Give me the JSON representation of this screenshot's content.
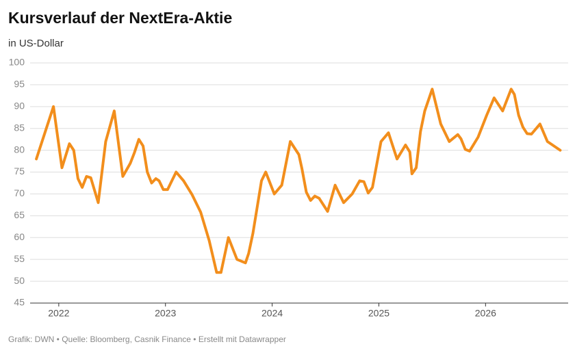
{
  "chart_data": {
    "type": "line",
    "title": "Kursverlauf der NextEra-Aktie",
    "subtitle": "in US-Dollar",
    "footer": "Grafik: DWN • Quelle: Bloomberg, Casnik Finance • Erstellt mit Datawrapper",
    "x": [
      2021.79,
      2021.95,
      2022.03,
      2022.1,
      2022.14,
      2022.18,
      2022.22,
      2022.26,
      2022.3,
      2022.37,
      2022.44,
      2022.52,
      2022.6,
      2022.67,
      2022.71,
      2022.75,
      2022.79,
      2022.83,
      2022.87,
      2022.91,
      2022.94,
      2022.98,
      2023.02,
      2023.1,
      2023.17,
      2023.25,
      2023.33,
      2023.41,
      2023.48,
      2023.52,
      2023.59,
      2023.67,
      2023.75,
      2023.78,
      2023.82,
      2023.9,
      2023.94,
      2024.02,
      2024.09,
      2024.17,
      2024.25,
      2024.28,
      2024.32,
      2024.36,
      2024.4,
      2024.44,
      2024.52,
      2024.59,
      2024.67,
      2024.75,
      2024.82,
      2024.86,
      2024.9,
      2024.94,
      2025.02,
      2025.09,
      2025.17,
      2025.25,
      2025.29,
      2025.31,
      2025.35,
      2025.39,
      2025.43,
      2025.5,
      2025.58,
      2025.66,
      2025.74,
      2025.77,
      2025.81,
      2025.85,
      2025.93,
      2026.01,
      2026.08,
      2026.16,
      2026.24,
      2026.27,
      2026.31,
      2026.35,
      2026.39,
      2026.43,
      2026.51,
      2026.58,
      2026.7
    ],
    "series": [
      {
        "name": "NextEra",
        "color": "#f28e1c",
        "values": [
          78,
          90,
          76,
          81.5,
          80,
          73.5,
          71.5,
          74,
          73.7,
          68,
          82,
          89,
          74,
          77,
          79.5,
          82.5,
          81,
          75,
          72.5,
          73.5,
          73,
          71,
          71,
          75,
          73,
          69.8,
          65.8,
          59.3,
          52,
          52,
          60,
          55,
          54.2,
          56.4,
          61,
          73,
          75,
          70,
          72,
          82,
          79,
          75.7,
          70.4,
          68.5,
          69.5,
          69,
          66,
          72,
          68,
          70,
          73,
          72.8,
          70.2,
          71.5,
          82,
          84,
          78,
          81.2,
          79.6,
          74.6,
          76,
          84.3,
          89,
          94,
          86,
          82,
          83.6,
          82.6,
          80.2,
          79.8,
          83,
          88,
          92,
          89,
          94,
          92.8,
          88,
          85.3,
          83.8,
          83.7,
          86,
          82,
          80
        ]
      }
    ],
    "xlim": [
      2021.77,
      2026.71
    ],
    "xticks": [
      2022,
      2023,
      2024,
      2025,
      2026
    ],
    "ylim": [
      45,
      100
    ],
    "yticks": [
      45,
      50,
      55,
      60,
      65,
      70,
      75,
      80,
      85,
      90,
      95,
      100
    ],
    "grid": true
  }
}
